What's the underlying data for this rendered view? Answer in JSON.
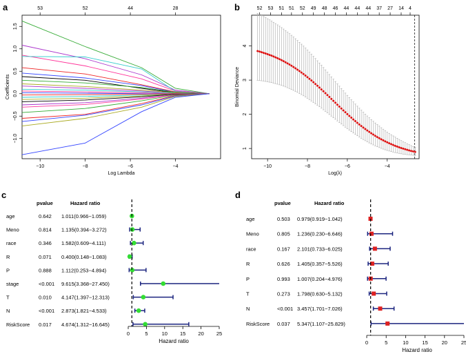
{
  "panels": {
    "a": "a",
    "b": "b",
    "c": "c",
    "d": "d"
  },
  "chart_data": [
    {
      "type": "line",
      "panel": "a",
      "title": "",
      "xlabel": "Log Lambda",
      "ylabel": "Coefficients",
      "xlim": [
        -10.8,
        -2.0
      ],
      "ylim": [
        -1.45,
        1.75
      ],
      "x_ticks": [
        -10,
        -8,
        -6,
        -4
      ],
      "y_ticks": [
        -1.0,
        -0.5,
        0.0,
        0.5,
        1.0,
        1.5
      ],
      "top_ticks": [
        {
          "x": -10.0,
          "label": "53"
        },
        {
          "x": -8.0,
          "label": "52"
        },
        {
          "x": -6.0,
          "label": "44"
        },
        {
          "x": -4.0,
          "label": "28"
        }
      ],
      "lambda_path": [
        -10.8,
        -8.0,
        -5.5,
        -4.0,
        -2.5
      ],
      "coefficient_paths": [
        {
          "color": "#33aa33",
          "values": [
            1.62,
            1.05,
            0.58,
            0.12,
            0.0
          ]
        },
        {
          "color": "#aa33cc",
          "values": [
            1.08,
            0.78,
            0.42,
            0.08,
            0.0
          ]
        },
        {
          "color": "#ff3399",
          "values": [
            0.86,
            0.62,
            0.33,
            0.06,
            0.0
          ]
        },
        {
          "color": "#33cccc",
          "values": [
            0.83,
            0.82,
            0.55,
            0.05,
            0.0
          ]
        },
        {
          "color": "#ee2222",
          "values": [
            0.58,
            0.44,
            0.2,
            0.04,
            0.0
          ]
        },
        {
          "color": "#3344ff",
          "values": [
            0.46,
            0.35,
            0.18,
            0.03,
            0.0
          ]
        },
        {
          "color": "#000000",
          "values": [
            0.38,
            0.3,
            0.12,
            0.02,
            0.0
          ]
        },
        {
          "color": "#33aa33",
          "values": [
            0.3,
            0.24,
            0.14,
            0.03,
            0.0
          ]
        },
        {
          "color": "#aaaa22",
          "values": [
            0.22,
            0.16,
            0.08,
            0.02,
            0.0
          ]
        },
        {
          "color": "#aa33cc",
          "values": [
            0.17,
            0.12,
            0.06,
            0.01,
            0.0
          ]
        },
        {
          "color": "#33cccc",
          "values": [
            0.1,
            0.08,
            0.04,
            0.01,
            0.0
          ]
        },
        {
          "color": "#ff3399",
          "values": [
            0.06,
            0.04,
            0.02,
            0.0,
            0.0
          ]
        },
        {
          "color": "#3344ff",
          "values": [
            0.02,
            0.01,
            0.0,
            0.0,
            0.0
          ]
        },
        {
          "color": "#ee2222",
          "values": [
            -0.03,
            -0.02,
            -0.01,
            0.0,
            0.0
          ]
        },
        {
          "color": "#33cccc",
          "values": [
            -0.08,
            -0.06,
            -0.03,
            -0.01,
            0.0
          ]
        },
        {
          "color": "#aaaa22",
          "values": [
            -0.13,
            -0.1,
            -0.05,
            -0.01,
            0.0
          ]
        },
        {
          "color": "#000000",
          "values": [
            -0.18,
            -0.14,
            -0.07,
            -0.01,
            0.0
          ]
        },
        {
          "color": "#aa33cc",
          "values": [
            -0.25,
            -0.2,
            -0.1,
            -0.02,
            0.0
          ]
        },
        {
          "color": "#ff3399",
          "values": [
            -0.3,
            -0.24,
            -0.12,
            -0.02,
            0.0
          ]
        },
        {
          "color": "#33aa33",
          "values": [
            -0.42,
            -0.33,
            -0.16,
            -0.03,
            0.0
          ]
        },
        {
          "color": "#ee2222",
          "values": [
            -0.55,
            -0.46,
            -0.22,
            -0.04,
            0.0
          ]
        },
        {
          "color": "#3344ff",
          "values": [
            -0.62,
            -0.48,
            -0.25,
            -0.05,
            0.0
          ]
        },
        {
          "color": "#aaaa22",
          "values": [
            -0.72,
            -0.55,
            -0.3,
            -0.06,
            0.0
          ]
        },
        {
          "color": "#3344ff",
          "values": [
            -1.36,
            -1.1,
            -0.4,
            -0.08,
            0.0
          ]
        }
      ]
    },
    {
      "type": "line",
      "panel": "b",
      "title": "",
      "xlabel": "Log(λ)",
      "ylabel": "Binomial Deviance",
      "xlim": [
        -10.8,
        -2.4
      ],
      "ylim": [
        0.7,
        4.9
      ],
      "x_ticks": [
        -10,
        -8,
        -6,
        -4
      ],
      "y_ticks": [
        1,
        2,
        3,
        4
      ],
      "top_ticks": [
        {
          "x": -10.4,
          "label": "52"
        },
        {
          "x": -9.85,
          "label": "53"
        },
        {
          "x": -9.3,
          "label": "51"
        },
        {
          "x": -8.8,
          "label": "51"
        },
        {
          "x": -8.25,
          "label": "52"
        },
        {
          "x": -7.7,
          "label": "49"
        },
        {
          "x": -7.15,
          "label": "48"
        },
        {
          "x": -6.6,
          "label": "46"
        },
        {
          "x": -6.05,
          "label": "44"
        },
        {
          "x": -5.5,
          "label": "44"
        },
        {
          "x": -4.95,
          "label": "44"
        },
        {
          "x": -4.4,
          "label": "37"
        },
        {
          "x": -3.85,
          "label": "27"
        },
        {
          "x": -3.3,
          "label": "14"
        },
        {
          "x": -2.85,
          "label": "4"
        }
      ],
      "reference_line_x": -2.62,
      "curve": {
        "x_range": [
          -10.5,
          -2.6
        ],
        "n_points": 80,
        "start_mean": 3.85,
        "end_mean": 0.9,
        "upper_offset": 1.1,
        "lower_offset": 0.9
      }
    },
    {
      "type": "forest",
      "panel": "c",
      "header_pvalue": "pvalue",
      "header_hr": "Hazard ratio",
      "xlabel": "Hazard ratio",
      "xlim": [
        0,
        25
      ],
      "x_ticks": [
        0,
        5,
        10,
        15,
        20,
        25
      ],
      "reference_x": 1,
      "marker": "circle",
      "marker_color": "#33dd33",
      "rows": [
        {
          "label": "age",
          "pvalue": "0.642",
          "hr_text": "1.011(0.966−1.059)",
          "hr": 1.011,
          "low": 0.966,
          "high": 1.059
        },
        {
          "label": "Meno",
          "pvalue": "0.814",
          "hr_text": "1.135(0.394−3.272)",
          "hr": 1.135,
          "low": 0.394,
          "high": 3.272
        },
        {
          "label": "race",
          "pvalue": "0.346",
          "hr_text": "1.582(0.609−4.111)",
          "hr": 1.582,
          "low": 0.609,
          "high": 4.111
        },
        {
          "label": "R",
          "pvalue": "0.071",
          "hr_text": "0.400(0.148−1.083)",
          "hr": 0.4,
          "low": 0.148,
          "high": 1.083
        },
        {
          "label": "P",
          "pvalue": "0.888",
          "hr_text": "1.112(0.253−4.894)",
          "hr": 1.112,
          "low": 0.253,
          "high": 4.894
        },
        {
          "label": "stage",
          "pvalue": "<0.001",
          "hr_text": "9.615(3.368−27.450)",
          "hr": 9.615,
          "low": 3.368,
          "high": 27.45
        },
        {
          "label": "T",
          "pvalue": "0.010",
          "hr_text": "4.147(1.397−12.313)",
          "hr": 4.147,
          "low": 1.397,
          "high": 12.313
        },
        {
          "label": "N",
          "pvalue": "<0.001",
          "hr_text": "2.873(1.821−4.533)",
          "hr": 2.873,
          "low": 1.821,
          "high": 4.533
        },
        {
          "label": "RiskScore",
          "pvalue": "0.017",
          "hr_text": "4.674(1.312−16.645)",
          "hr": 4.674,
          "low": 1.312,
          "high": 16.645
        }
      ]
    },
    {
      "type": "forest",
      "panel": "d",
      "header_pvalue": "pvalue",
      "header_hr": "Hazard ratio",
      "xlabel": "Hazard ratio",
      "xlim": [
        0,
        25
      ],
      "x_ticks": [
        0,
        5,
        10,
        15,
        20,
        25
      ],
      "reference_x": 1,
      "marker": "square",
      "marker_color": "#dd2222",
      "rows": [
        {
          "label": "age",
          "pvalue": "0.503",
          "hr_text": "0.979(0.919−1.042)",
          "hr": 0.979,
          "low": 0.919,
          "high": 1.042
        },
        {
          "label": "Meno",
          "pvalue": "0.805",
          "hr_text": "1.236(0.230−6.646)",
          "hr": 1.236,
          "low": 0.23,
          "high": 6.646
        },
        {
          "label": "race",
          "pvalue": "0.167",
          "hr_text": "2.101(0.733−6.025)",
          "hr": 2.101,
          "low": 0.733,
          "high": 6.025
        },
        {
          "label": "R",
          "pvalue": "0.626",
          "hr_text": "1.405(0.357−5.526)",
          "hr": 1.405,
          "low": 0.357,
          "high": 5.526
        },
        {
          "label": "P",
          "pvalue": "0.993",
          "hr_text": "1.007(0.204−4.976)",
          "hr": 1.007,
          "low": 0.204,
          "high": 4.976
        },
        {
          "label": "T",
          "pvalue": "0.273",
          "hr_text": "1.798(0.630−5.132)",
          "hr": 1.798,
          "low": 0.63,
          "high": 5.132
        },
        {
          "label": "N",
          "pvalue": "<0.001",
          "hr_text": "3.457(1.701−7.026)",
          "hr": 3.457,
          "low": 1.701,
          "high": 7.026
        },
        {
          "label": "RiskScore",
          "pvalue": "0.037",
          "hr_text": "5.347(1.107−25.829)",
          "hr": 5.347,
          "low": 1.107,
          "high": 25.829
        }
      ]
    }
  ]
}
